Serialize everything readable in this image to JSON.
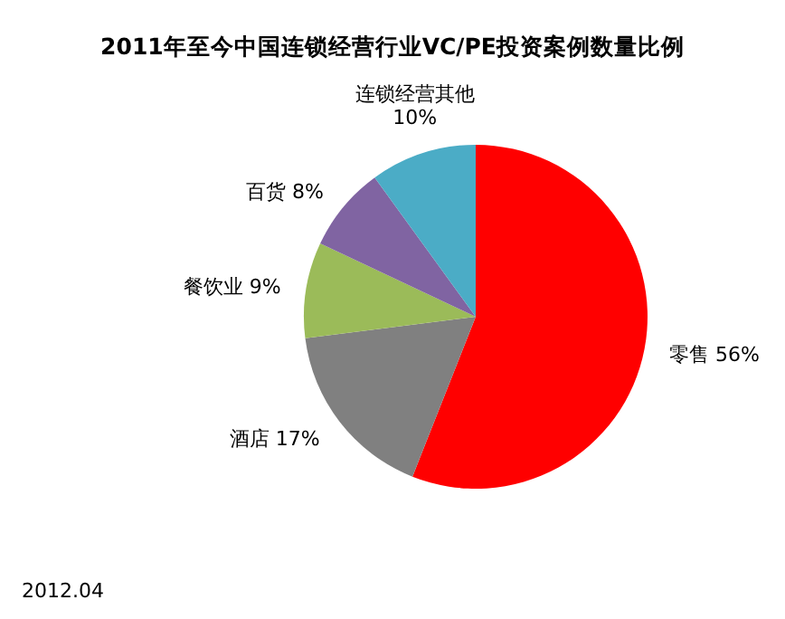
{
  "chart_data": {
    "type": "pie",
    "title": "2011年至今中国连锁经营行业VC/PE投资案例数量比例",
    "categories": [
      "零售",
      "酒店",
      "餐饮业",
      "百货",
      "连锁经营其他"
    ],
    "values": [
      56,
      17,
      9,
      8,
      10
    ],
    "value_labels": [
      "56%",
      "17%",
      "9%",
      "8%",
      "10%"
    ],
    "colors": [
      "#ff0000",
      "#808080",
      "#9bbb59",
      "#8064a2",
      "#4bacc6"
    ],
    "annotations": [
      "2012.04"
    ]
  }
}
